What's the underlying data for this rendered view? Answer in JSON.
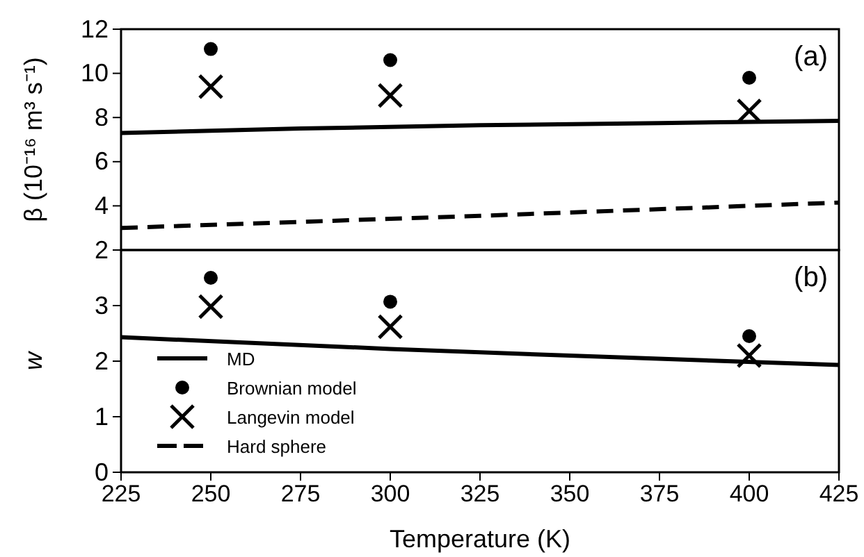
{
  "chart_data": [
    {
      "type": "line",
      "ylabel": "β (10⁻¹⁶ m³ s⁻¹)",
      "xlim": [
        225,
        425
      ],
      "xticks": [
        225,
        250,
        275,
        300,
        325,
        350,
        375,
        400,
        425
      ],
      "ylim": [
        2,
        12
      ],
      "yticks": [
        2,
        4,
        6,
        8,
        10,
        12
      ],
      "tick_labels": "y",
      "grid": false,
      "annotations": [
        "(a)"
      ],
      "series": [
        {
          "line_style": "solid",
          "color": "#000000",
          "x": [
            225,
            275,
            325,
            375,
            425
          ],
          "values": [
            7.3,
            7.5,
            7.65,
            7.75,
            7.85
          ]
        },
        {
          "type": "scatter",
          "marker": "circle",
          "color": "#000000",
          "x": [
            250,
            300,
            400
          ],
          "values": [
            11.1,
            10.6,
            9.8
          ]
        },
        {
          "type": "scatter",
          "marker": "cross",
          "color": "#000000",
          "x": [
            250,
            300,
            400
          ],
          "values": [
            9.4,
            9.0,
            8.3
          ]
        },
        {
          "name": "Hard sphere",
          "line_style": "dashed",
          "color": "#000000",
          "x": [
            225,
            325,
            425
          ],
          "values": [
            3.0,
            3.55,
            4.15
          ]
        }
      ]
    },
    {
      "type": "line",
      "ylabel": "w",
      "xlabel": "Temperature (K)",
      "xlim": [
        225,
        425
      ],
      "xticks": [
        225,
        250,
        275,
        300,
        325,
        350,
        375,
        400,
        425
      ],
      "ylim": [
        0,
        4
      ],
      "yticks": [
        0,
        1,
        2,
        3
      ],
      "grid": false,
      "legend": "bottom left",
      "annotations": [
        "(b)"
      ],
      "series": [
        {
          "name": "MD",
          "line_style": "solid",
          "color": "#000000",
          "x": [
            225,
            300,
            350,
            425
          ],
          "values": [
            2.43,
            2.22,
            2.1,
            1.93
          ]
        },
        {
          "name": "Brownian model",
          "type": "scatter",
          "marker": "circle",
          "color": "#000000",
          "x": [
            250,
            300,
            400
          ],
          "values": [
            3.5,
            3.07,
            2.45
          ]
        },
        {
          "name": "Langevin model",
          "type": "scatter",
          "marker": "cross",
          "color": "#000000",
          "x": [
            250,
            300,
            400
          ],
          "values": [
            2.98,
            2.62,
            2.1
          ]
        }
      ]
    }
  ]
}
